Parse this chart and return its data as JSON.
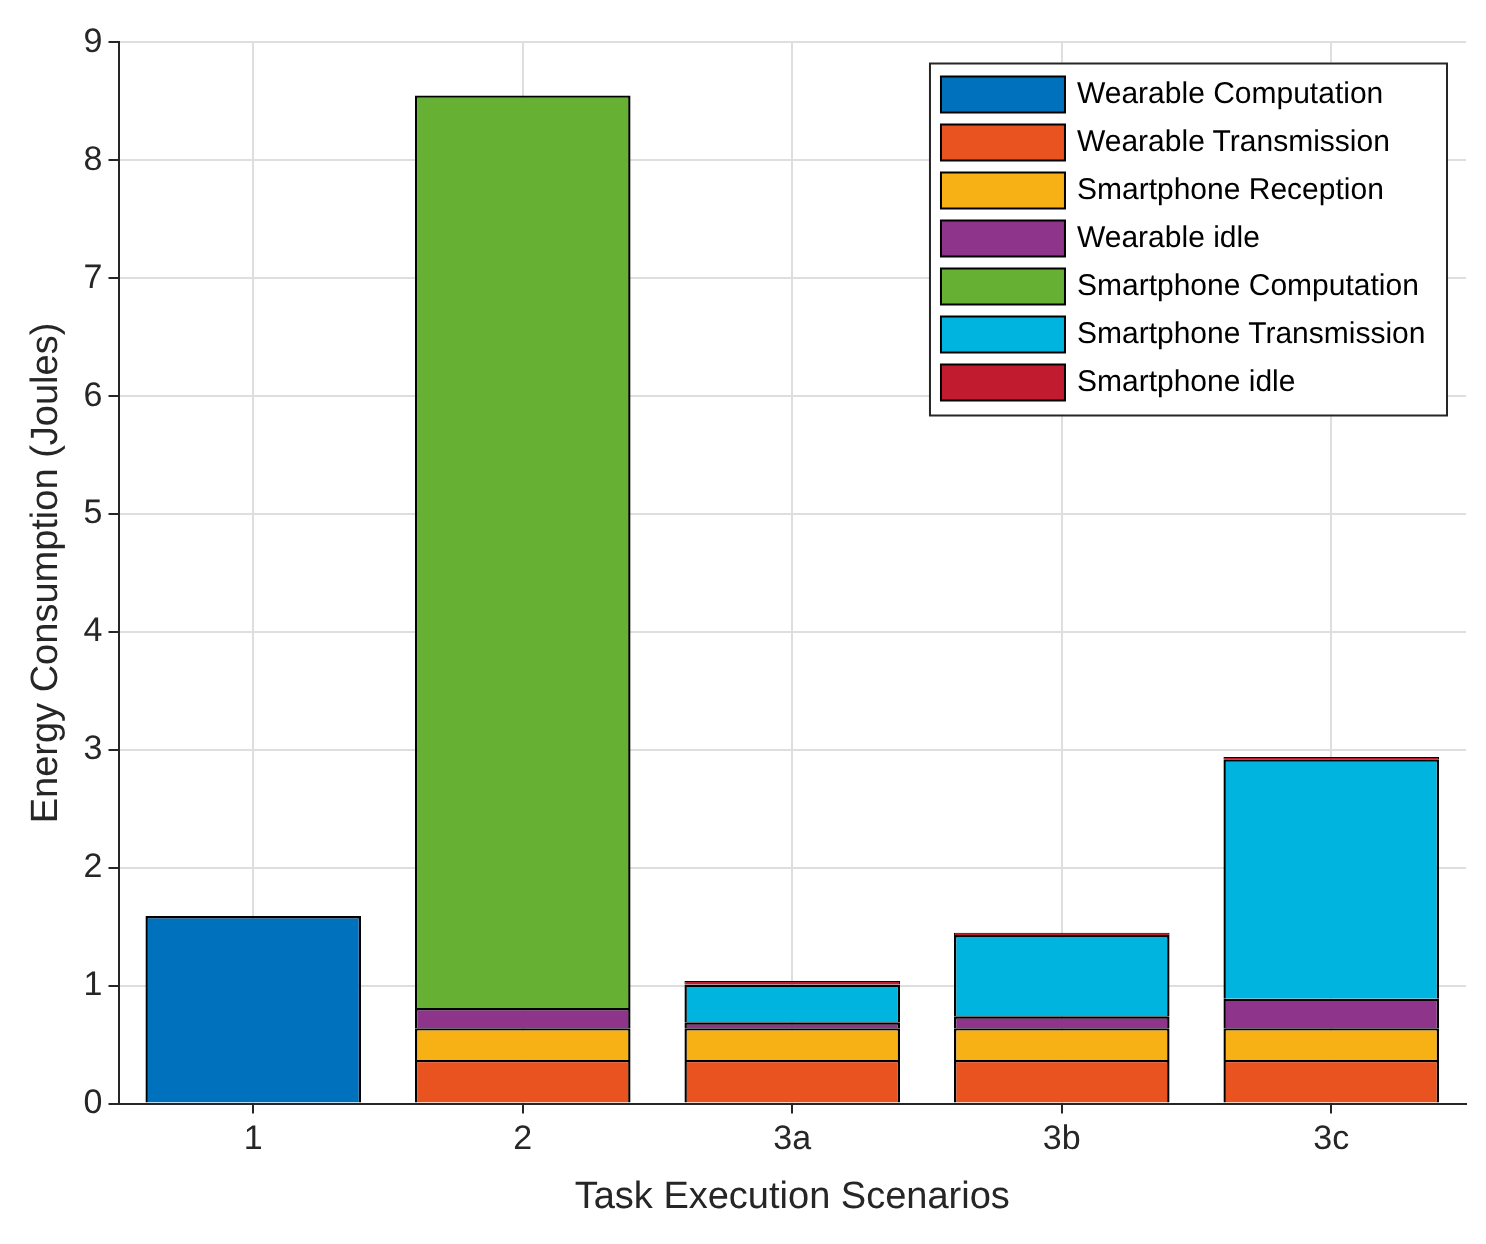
{
  "chart_data": {
    "type": "bar",
    "stacked": true,
    "xlabel": "Task Execution Scenarios",
    "ylabel": "Energy Consumption (Joules)",
    "categories": [
      "1",
      "2",
      "3a",
      "3b",
      "3c"
    ],
    "series": [
      {
        "name": "Wearable Computation",
        "color": "#0072bd",
        "values": [
          1.59,
          null,
          null,
          null,
          null
        ]
      },
      {
        "name": "Wearable Transmission",
        "color": "#e8531f",
        "values": [
          null,
          0.37,
          0.37,
          0.37,
          0.37
        ]
      },
      {
        "name": "Smartphone Reception",
        "color": "#f8b114",
        "values": [
          null,
          0.27,
          0.27,
          0.27,
          0.27
        ]
      },
      {
        "name": "Wearable idle",
        "color": "#8e348a",
        "values": [
          null,
          0.17,
          0.05,
          0.1,
          0.25
        ]
      },
      {
        "name": "Smartphone Computation",
        "color": "#66b033",
        "values": [
          null,
          7.74,
          null,
          null,
          null
        ]
      },
      {
        "name": "Smartphone Transmission",
        "color": "#00b4e0",
        "values": [
          null,
          null,
          0.32,
          0.69,
          2.03
        ]
      },
      {
        "name": "Smartphone idle",
        "color": "#c01b2f",
        "values": [
          null,
          null,
          0.03,
          0.02,
          0.02
        ]
      }
    ],
    "ylim": [
      0,
      9
    ],
    "yticks": [
      0,
      1,
      2,
      3,
      4,
      5,
      6,
      7,
      8,
      9
    ],
    "grid": true,
    "legend": "top right"
  }
}
